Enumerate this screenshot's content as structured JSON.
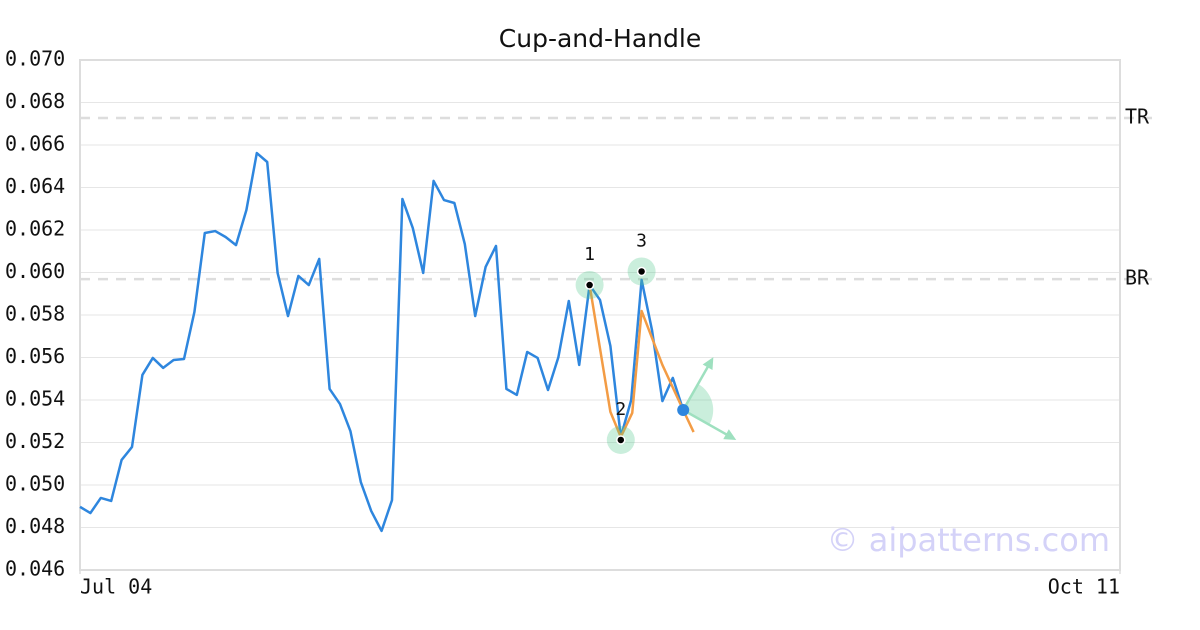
{
  "chart_data": {
    "type": "line",
    "title": "Cup-and-Handle",
    "x": [
      0,
      1,
      2,
      3,
      4,
      5,
      6,
      7,
      8,
      9,
      10,
      11,
      12,
      13,
      14,
      15,
      16,
      17,
      18,
      19,
      20,
      21,
      22,
      23,
      24,
      25,
      26,
      27,
      28,
      29,
      30,
      31,
      32,
      33,
      34,
      35,
      36,
      37,
      38,
      39,
      40,
      41,
      42,
      43,
      44,
      45,
      46,
      47,
      48,
      49,
      50,
      51,
      52,
      53,
      54,
      55,
      56,
      57,
      58
    ],
    "series": [
      {
        "color": "#2e86de",
        "values": [
          0.04897,
          0.04868,
          0.04939,
          0.04925,
          0.05118,
          0.05179,
          0.05518,
          0.05598,
          0.05551,
          0.05588,
          0.05593,
          0.05814,
          0.06186,
          0.06195,
          0.06167,
          0.06129,
          0.06294,
          0.06562,
          0.0652,
          0.05998,
          0.05795,
          0.05984,
          0.05941,
          0.06064,
          0.05452,
          0.05381,
          0.05254,
          0.05014,
          0.04878,
          0.04784,
          0.04929,
          0.06346,
          0.06209,
          0.05998,
          0.06431,
          0.06341,
          0.06327,
          0.06134,
          0.05795,
          0.06026,
          0.06125,
          0.05452,
          0.05424,
          0.05626,
          0.05598,
          0.05447,
          0.05602,
          0.05866,
          0.05565,
          0.05941,
          0.05871,
          0.05654,
          0.05226,
          0.054,
          0.05965,
          0.05729,
          0.05395,
          0.05504,
          0.05353
        ]
      }
    ],
    "pattern_line": {
      "color": "#f39c45",
      "x": [
        49,
        51,
        52,
        53.1,
        54,
        56,
        58,
        59
      ],
      "values": [
        0.05941,
        0.05344,
        0.05226,
        0.05339,
        0.05819,
        0.05565,
        0.05353,
        0.05249
      ]
    },
    "pattern_points": [
      {
        "label": "1",
        "x": 49,
        "y": 0.05941
      },
      {
        "label": "2",
        "x": 52,
        "y": 0.05212
      },
      {
        "label": "3",
        "x": 54,
        "y": 0.06005
      }
    ],
    "current_point": {
      "x": 58,
      "y": 0.05353,
      "color": "#2e86de"
    },
    "projections": [
      {
        "x": 60.9,
        "y": 0.05602
      },
      {
        "x": 63.1,
        "y": 0.05212
      }
    ],
    "levels": [
      {
        "label": "TR",
        "value": 0.06727
      },
      {
        "label": "BR",
        "value": 0.05969
      }
    ],
    "xlim": [
      0,
      100
    ],
    "xticks": [
      {
        "value": 0,
        "label": "Jul 04"
      },
      {
        "value": 100,
        "label": "Oct 11"
      }
    ],
    "ylim": [
      0.046,
      0.07
    ],
    "yticks": [
      {
        "value": 0.046,
        "label": "0.046"
      },
      {
        "value": 0.048,
        "label": "0.048"
      },
      {
        "value": 0.05,
        "label": "0.050"
      },
      {
        "value": 0.052,
        "label": "0.052"
      },
      {
        "value": 0.054,
        "label": "0.054"
      },
      {
        "value": 0.056,
        "label": "0.056"
      },
      {
        "value": 0.058,
        "label": "0.058"
      },
      {
        "value": 0.06,
        "label": "0.060"
      },
      {
        "value": 0.062,
        "label": "0.062"
      },
      {
        "value": 0.064,
        "label": "0.064"
      },
      {
        "value": 0.066,
        "label": "0.066"
      },
      {
        "value": 0.068,
        "label": "0.068"
      },
      {
        "value": 0.07,
        "label": "0.070"
      }
    ],
    "grid": true,
    "watermark": "© aipatterns.com"
  }
}
